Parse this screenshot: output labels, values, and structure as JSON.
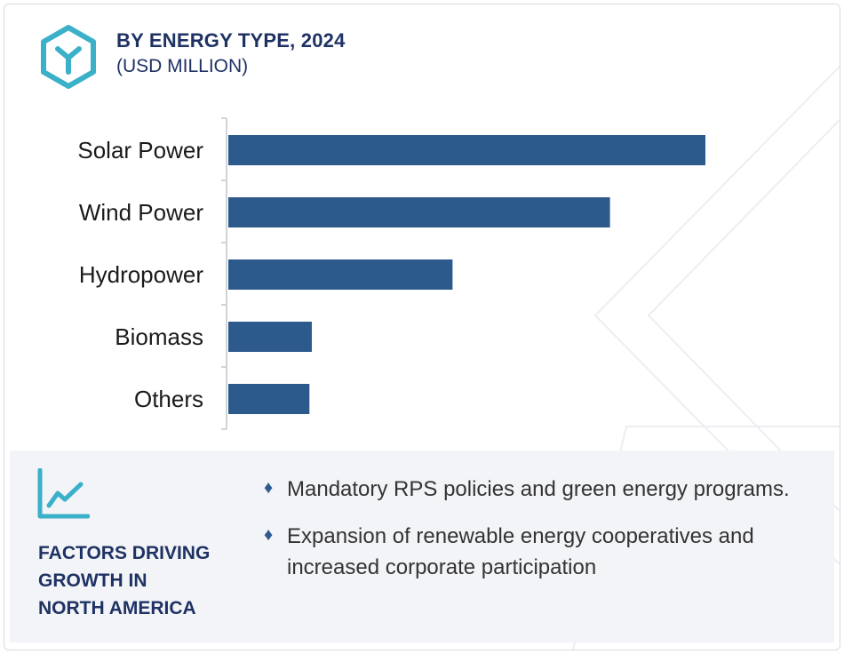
{
  "header": {
    "title": "BY ENERGY TYPE, 2024",
    "subtitle": "(USD MILLION)",
    "logo_icon": "hexagon-y-logo-icon"
  },
  "chart_data": {
    "type": "bar",
    "orientation": "horizontal",
    "categories": [
      "Solar Power",
      "Wind Power",
      "Hydropower",
      "Biomass",
      "Others"
    ],
    "values": [
      100,
      80,
      47,
      17.5,
      17
    ],
    "value_scale": "relative (no axis values printed)",
    "bar_color": "#2d5a8c",
    "grid": false,
    "legend": "none"
  },
  "factors_panel": {
    "icon": "trend-line-chart-icon",
    "title": "FACTORS DRIVING\nGROWTH IN\nNORTH AMERICA",
    "items": [
      "Mandatory RPS policies and green energy programs.",
      "Expansion of renewable energy cooperatives and increased corporate participation"
    ],
    "bullet": "♦"
  },
  "colors": {
    "accent": "#3bb0c9",
    "heading": "#1f3264",
    "bar": "#2d5a8c",
    "panel_bg": "#f3f4f8"
  }
}
